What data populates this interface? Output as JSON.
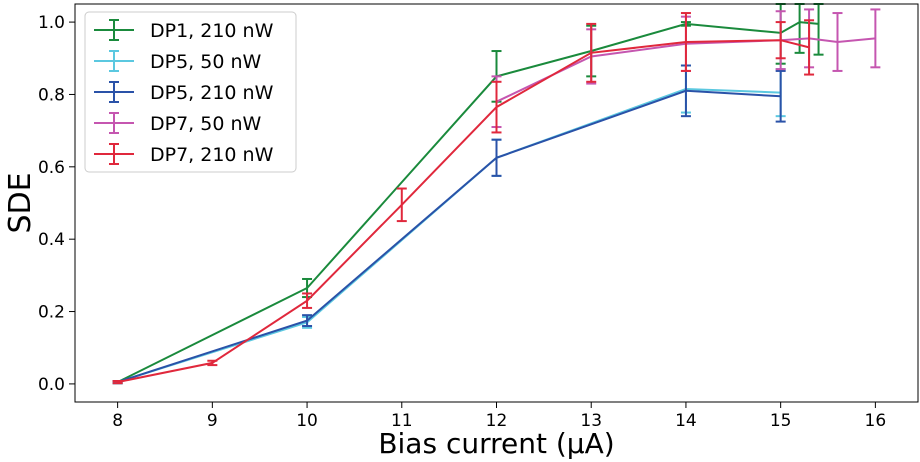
{
  "chart_data": {
    "type": "line",
    "xlabel": "Bias current (μA)",
    "ylabel": "SDE",
    "xlim": [
      7.55,
      16.45
    ],
    "ylim": [
      -0.05,
      1.05
    ],
    "x_ticks": [
      8,
      9,
      10,
      11,
      12,
      13,
      14,
      15,
      16
    ],
    "y_ticks": [
      0.0,
      0.2,
      0.4,
      0.6,
      0.8,
      1.0
    ],
    "x_tick_labels": [
      "8",
      "9",
      "10",
      "11",
      "12",
      "13",
      "14",
      "15",
      "16"
    ],
    "y_tick_labels": [
      "0.0",
      "0.2",
      "0.4",
      "0.6",
      "0.8",
      "1.0"
    ],
    "grid": false,
    "legend_position": "top-left",
    "error_bars": true,
    "series": [
      {
        "name": "DP1, 210 nW",
        "color": "#1a8a3c",
        "x": [
          8,
          10,
          12,
          13,
          14,
          15,
          15.2,
          15.4
        ],
        "y": [
          0.005,
          0.265,
          0.85,
          0.92,
          0.995,
          0.97,
          1.0,
          0.995
        ],
        "err": [
          0.003,
          0.025,
          0.07,
          0.07,
          0.005,
          0.085,
          0.085,
          0.085
        ]
      },
      {
        "name": "DP5, 50 nW",
        "color": "#5bc8e0",
        "x": [
          8,
          10,
          12,
          14,
          15
        ],
        "y": [
          0.005,
          0.17,
          0.625,
          0.815,
          0.805
        ],
        "err": [
          0.003,
          0.015,
          0.05,
          0.065,
          0.065
        ]
      },
      {
        "name": "DP5, 210 nW",
        "color": "#2a52a8",
        "x": [
          8,
          10,
          12,
          14,
          15
        ],
        "y": [
          0.005,
          0.175,
          0.625,
          0.81,
          0.795
        ],
        "err": [
          0.003,
          0.015,
          0.05,
          0.07,
          0.07
        ]
      },
      {
        "name": "DP7, 50 nW",
        "color": "#c556b0",
        "x": [
          12,
          13,
          14,
          15,
          15.3,
          15.6,
          16
        ],
        "y": [
          0.78,
          0.905,
          0.94,
          0.95,
          0.955,
          0.945,
          0.955
        ],
        "err": [
          0.07,
          0.075,
          0.075,
          0.08,
          0.08,
          0.08,
          0.08
        ]
      },
      {
        "name": "DP7, 210 nW",
        "color": "#e0283c",
        "x": [
          8,
          9,
          10,
          11,
          12,
          13,
          14,
          15,
          15.3
        ],
        "y": [
          0.005,
          0.058,
          0.23,
          0.495,
          0.765,
          0.915,
          0.945,
          0.95,
          0.93
        ],
        "err": [
          0.003,
          0.006,
          0.02,
          0.045,
          0.07,
          0.08,
          0.08,
          0.05,
          0.075
        ]
      }
    ]
  }
}
